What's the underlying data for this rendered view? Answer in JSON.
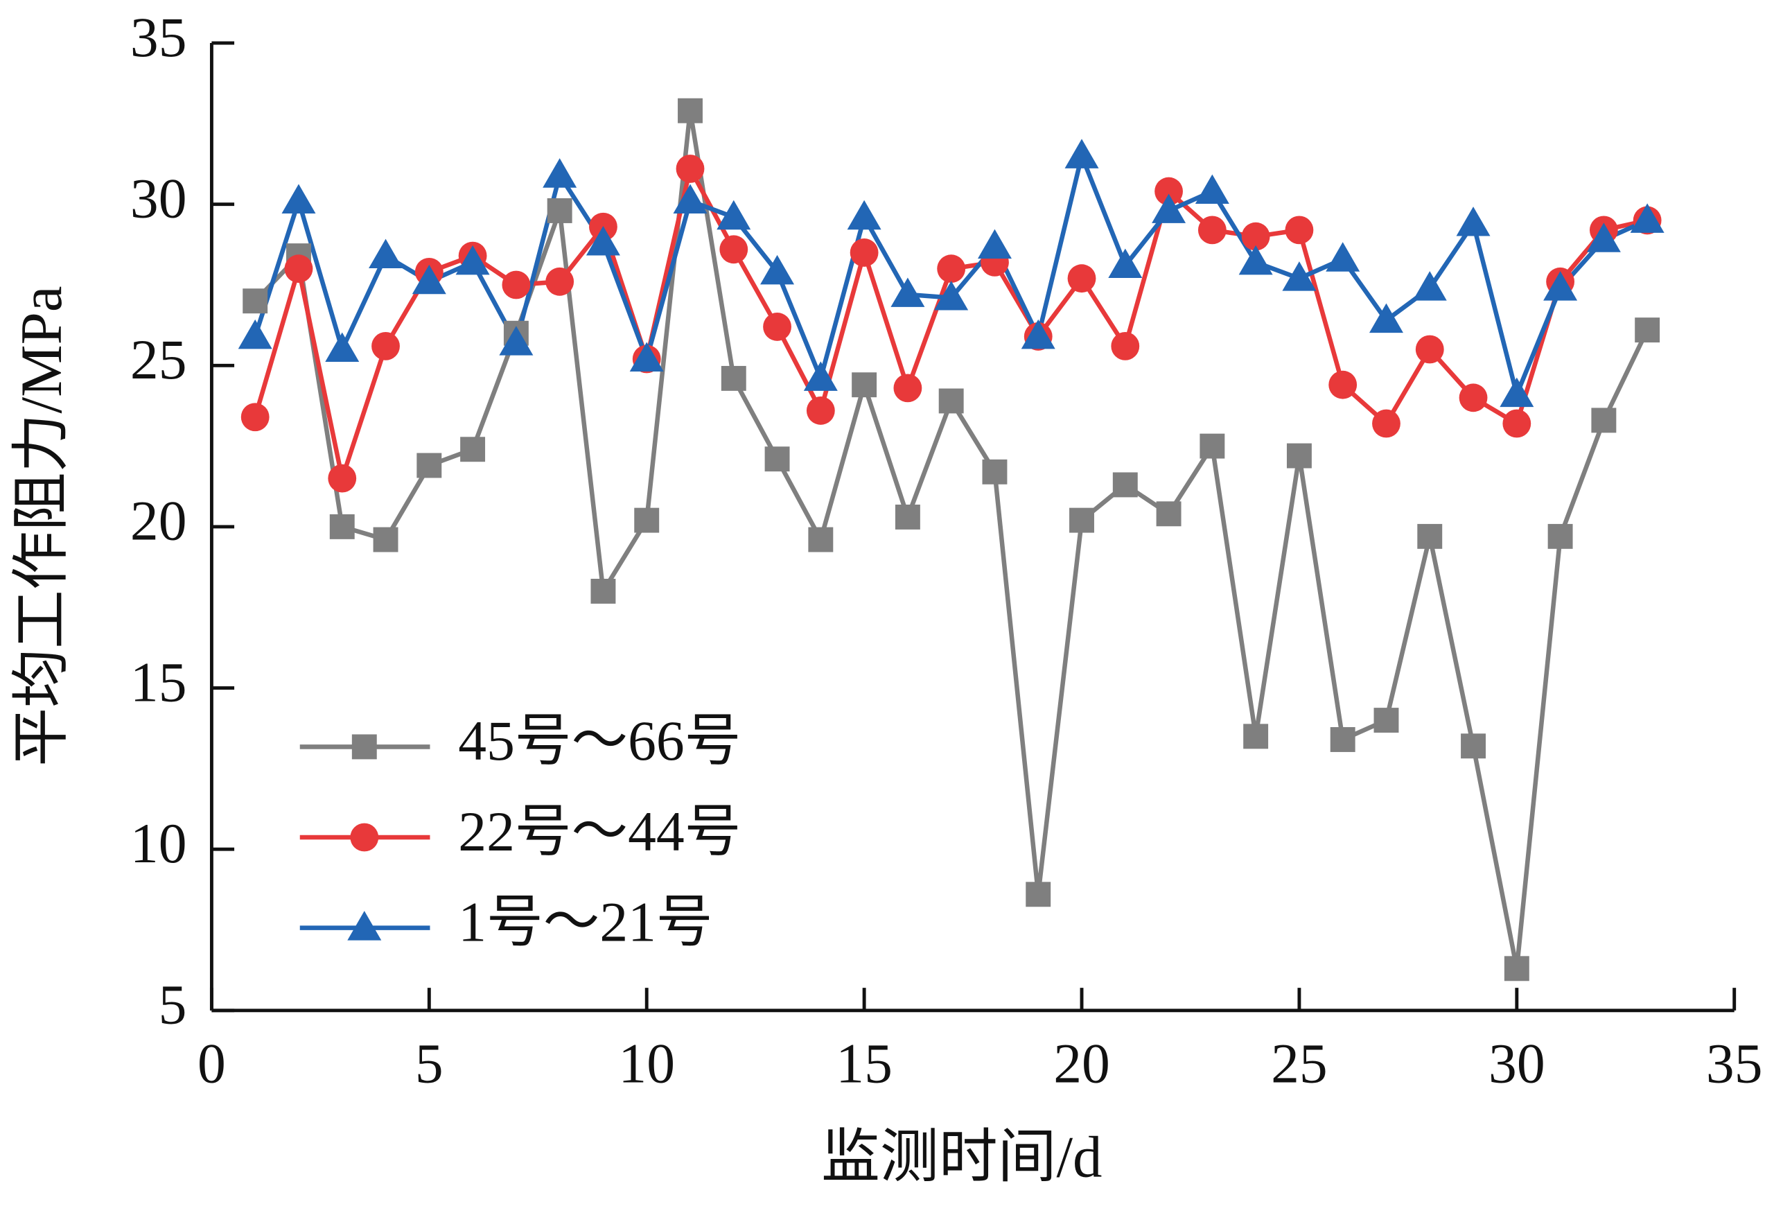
{
  "chart_data": {
    "type": "line",
    "x_label": "监测时间/d",
    "y_label": "平均工作阻力/MPa",
    "x": [
      1,
      2,
      3,
      4,
      5,
      6,
      7,
      8,
      9,
      10,
      11,
      12,
      13,
      14,
      15,
      16,
      17,
      18,
      19,
      20,
      21,
      22,
      23,
      24,
      25,
      26,
      27,
      28,
      29,
      30,
      31,
      32,
      33
    ],
    "series": [
      {
        "name": "45号～66号",
        "color": "#7f7f7f",
        "marker": "square",
        "values": [
          27.0,
          28.4,
          20.0,
          19.6,
          21.9,
          22.4,
          26.0,
          29.8,
          18.0,
          20.2,
          32.9,
          24.6,
          22.1,
          19.6,
          24.4,
          20.3,
          23.9,
          21.7,
          8.6,
          20.2,
          21.3,
          20.4,
          22.5,
          13.5,
          22.2,
          13.4,
          14.0,
          19.7,
          13.2,
          6.3,
          19.7,
          23.3,
          26.1
        ]
      },
      {
        "name": "22号～44号",
        "color": "#e8393a",
        "marker": "circle",
        "values": [
          23.4,
          28.0,
          21.5,
          25.6,
          27.9,
          28.4,
          27.5,
          27.6,
          29.3,
          25.2,
          31.1,
          28.6,
          26.2,
          23.6,
          28.5,
          24.3,
          28.0,
          28.2,
          25.9,
          27.7,
          25.6,
          30.4,
          29.2,
          29.0,
          29.2,
          24.4,
          23.2,
          25.5,
          24.0,
          23.2,
          27.6,
          29.2,
          29.5
        ]
      },
      {
        "name": "1号～21号",
        "color": "#2266b5",
        "marker": "triangle",
        "values": [
          25.9,
          30.1,
          25.5,
          28.4,
          27.6,
          28.2,
          25.7,
          30.9,
          28.8,
          25.2,
          30.1,
          29.6,
          27.9,
          24.6,
          29.6,
          27.2,
          27.1,
          28.7,
          25.9,
          31.5,
          28.1,
          29.8,
          30.4,
          28.2,
          27.7,
          28.3,
          26.4,
          27.4,
          29.4,
          24.1,
          27.4,
          28.9,
          29.5
        ]
      }
    ],
    "xlim": [
      0,
      35
    ],
    "xticks": [
      0,
      5,
      10,
      15,
      20,
      25,
      30,
      35
    ],
    "ylim": [
      5,
      35
    ],
    "yticks": [
      5,
      10,
      15,
      20,
      25,
      30,
      35
    ],
    "legend": "lower left"
  }
}
